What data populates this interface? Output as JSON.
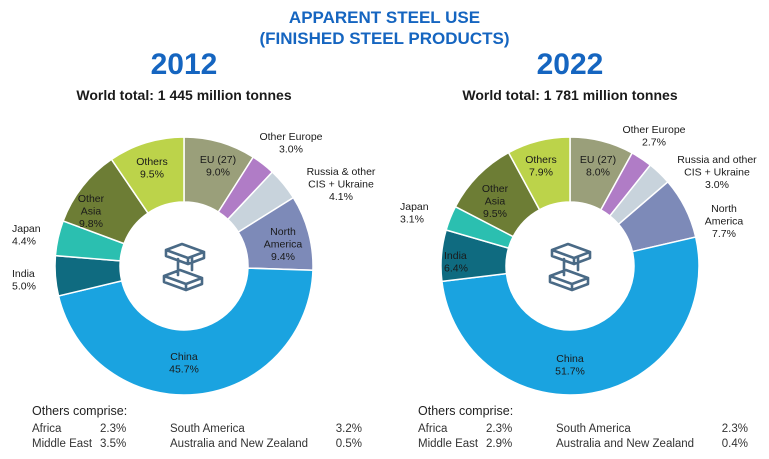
{
  "title_line1": "APPARENT STEEL USE",
  "title_line2": "(FINISHED STEEL PRODUCTS)",
  "colors": {
    "title": "#1565c0",
    "China": "#1aa3e0",
    "India": "#0f6b80",
    "Japan": "#2bbfb0",
    "Other Asia": "#6d7d35",
    "Others": "#bcd34a",
    "EU (27)": "#9a9f7a",
    "Other Europe": "#b07cc6",
    "Russia & other CIS + Ukraine": "#c8d3dc",
    "North America": "#7d8ab8"
  },
  "chart_data": [
    {
      "type": "pie",
      "title": "2012",
      "subtitle": "World total: 1 445 million tonnes",
      "slices": [
        {
          "name": "EU (27)",
          "label_lines": [
            "EU (27)"
          ],
          "value": 9.0,
          "display": "9.0%"
        },
        {
          "name": "Other Europe",
          "label_lines": [
            "Other Europe"
          ],
          "value": 3.0,
          "display": "3.0%"
        },
        {
          "name": "Russia & other CIS + Ukraine",
          "label_lines": [
            "Russia & other",
            "CIS + Ukraine"
          ],
          "value": 4.1,
          "display": "4.1%"
        },
        {
          "name": "North America",
          "label_lines": [
            "North",
            "America"
          ],
          "value": 9.4,
          "display": "9.4%"
        },
        {
          "name": "China",
          "label_lines": [
            "China"
          ],
          "value": 45.7,
          "display": "45.7%"
        },
        {
          "name": "India",
          "label_lines": [
            "India"
          ],
          "value": 5.0,
          "display": "5.0%"
        },
        {
          "name": "Japan",
          "label_lines": [
            "Japan"
          ],
          "value": 4.4,
          "display": "4.4%"
        },
        {
          "name": "Other Asia",
          "label_lines": [
            "Other",
            "Asia"
          ],
          "value": 9.8,
          "display": "9.8%"
        },
        {
          "name": "Others",
          "label_lines": [
            "Others"
          ],
          "value": 9.5,
          "display": "9.5%"
        }
      ],
      "others_comprise": {
        "heading": "Others comprise:",
        "rows": [
          {
            "a_name": "Africa",
            "a_val": "2.3%",
            "b_name": "South America",
            "b_val": "3.2%"
          },
          {
            "a_name": "Middle East",
            "a_val": "3.5%",
            "b_name": "Australia and New Zealand",
            "b_val": "0.5%"
          }
        ]
      }
    },
    {
      "type": "pie",
      "title": "2022",
      "subtitle": "World total: 1 781 million tonnes",
      "slices": [
        {
          "name": "EU (27)",
          "label_lines": [
            "EU (27)"
          ],
          "value": 8.0,
          "display": "8.0%"
        },
        {
          "name": "Other Europe",
          "label_lines": [
            "Other Europe"
          ],
          "value": 2.7,
          "display": "2.7%"
        },
        {
          "name": "Russia & other CIS + Ukraine",
          "label_lines": [
            "Russia and other",
            "CIS + Ukraine"
          ],
          "value": 3.0,
          "display": "3.0%"
        },
        {
          "name": "North America",
          "label_lines": [
            "North",
            "America"
          ],
          "value": 7.7,
          "display": "7.7%"
        },
        {
          "name": "China",
          "label_lines": [
            "China"
          ],
          "value": 51.7,
          "display": "51.7%"
        },
        {
          "name": "India",
          "label_lines": [
            "India"
          ],
          "value": 6.4,
          "display": "6.4%"
        },
        {
          "name": "Japan",
          "label_lines": [
            "Japan"
          ],
          "value": 3.1,
          "display": "3.1%"
        },
        {
          "name": "Other Asia",
          "label_lines": [
            "Other",
            "Asia"
          ],
          "value": 9.5,
          "display": "9.5%"
        },
        {
          "name": "Others",
          "label_lines": [
            "Others"
          ],
          "value": 7.9,
          "display": "7.9%"
        }
      ],
      "others_comprise": {
        "heading": "Others comprise:",
        "rows": [
          {
            "a_name": "Africa",
            "a_val": "2.3%",
            "b_name": "South America",
            "b_val": "2.3%"
          },
          {
            "a_name": "Middle East",
            "a_val": "2.9%",
            "b_name": "Australia and New Zealand",
            "b_val": "0.4%"
          }
        ]
      }
    }
  ]
}
